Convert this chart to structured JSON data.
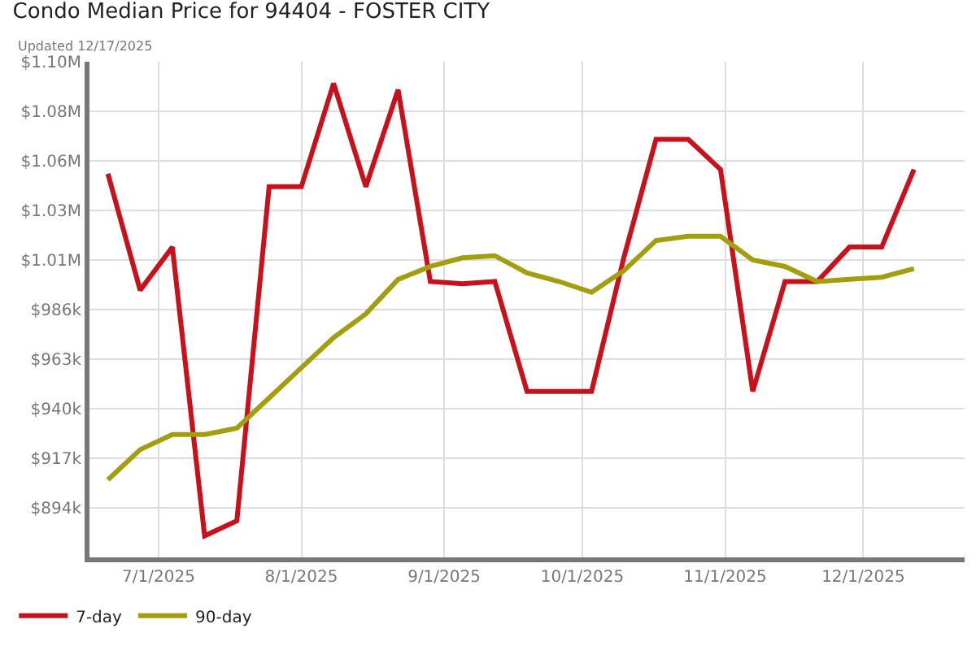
{
  "chart_data": {
    "type": "line",
    "title": "Condo Median Price for 94404 - FOSTER CITY",
    "subtitle": "Updated 12/17/2025",
    "x": [
      "2025-06-20",
      "2025-06-27",
      "2025-07-04",
      "2025-07-11",
      "2025-07-18",
      "2025-07-25",
      "2025-08-01",
      "2025-08-08",
      "2025-08-15",
      "2025-08-22",
      "2025-08-29",
      "2025-09-05",
      "2025-09-12",
      "2025-09-19",
      "2025-09-26",
      "2025-10-03",
      "2025-10-10",
      "2025-10-17",
      "2025-10-24",
      "2025-10-31",
      "2025-11-07",
      "2025-11-14",
      "2025-11-21",
      "2025-11-28",
      "2025-12-05",
      "2025-12-12"
    ],
    "series": [
      {
        "name": "7-day",
        "color": "#c8111a",
        "values": [
          1049000,
          995000,
          1015000,
          881000,
          888000,
          1043000,
          1043000,
          1091000,
          1043000,
          1088000,
          999000,
          998000,
          999000,
          948000,
          948000,
          948000,
          1010000,
          1065000,
          1065000,
          1051000,
          948000,
          999000,
          999000,
          1015000,
          1015000,
          1051000
        ]
      },
      {
        "name": "90-day",
        "color": "#a39e0e",
        "values": [
          907000,
          921000,
          928000,
          928000,
          931000,
          945000,
          959000,
          973000,
          984000,
          1000000,
          1006000,
          1010000,
          1011000,
          1003000,
          999000,
          994000,
          1004000,
          1018000,
          1020000,
          1020000,
          1009000,
          1006000,
          999000,
          1000000,
          1001000,
          1005000
        ]
      }
    ],
    "xlim": [
      "2025-06-16",
      "2025-12-23"
    ],
    "xticks": [
      {
        "value": "2025-07-01",
        "label": "7/1/2025"
      },
      {
        "value": "2025-08-01",
        "label": "8/1/2025"
      },
      {
        "value": "2025-09-01",
        "label": "9/1/2025"
      },
      {
        "value": "2025-10-01",
        "label": "10/1/2025"
      },
      {
        "value": "2025-11-01",
        "label": "11/1/2025"
      },
      {
        "value": "2025-12-01",
        "label": "12/1/2025"
      }
    ],
    "ylim": [
      871000,
      1101000
    ],
    "yticks": [
      {
        "value": 894000,
        "label": "$894k"
      },
      {
        "value": 917000,
        "label": "$917k"
      },
      {
        "value": 940000,
        "label": "$940k"
      },
      {
        "value": 963000,
        "label": "$963k"
      },
      {
        "value": 986000,
        "label": "$986k"
      },
      {
        "value": 1009000,
        "label": "$1.01M"
      },
      {
        "value": 1032000,
        "label": "$1.03M"
      },
      {
        "value": 1055000,
        "label": "$1.06M"
      },
      {
        "value": 1078000,
        "label": "$1.08M"
      },
      {
        "value": 1101000,
        "label": "$1.10M"
      }
    ],
    "grid": true,
    "legend": "bottom left",
    "line_style": "solid"
  }
}
